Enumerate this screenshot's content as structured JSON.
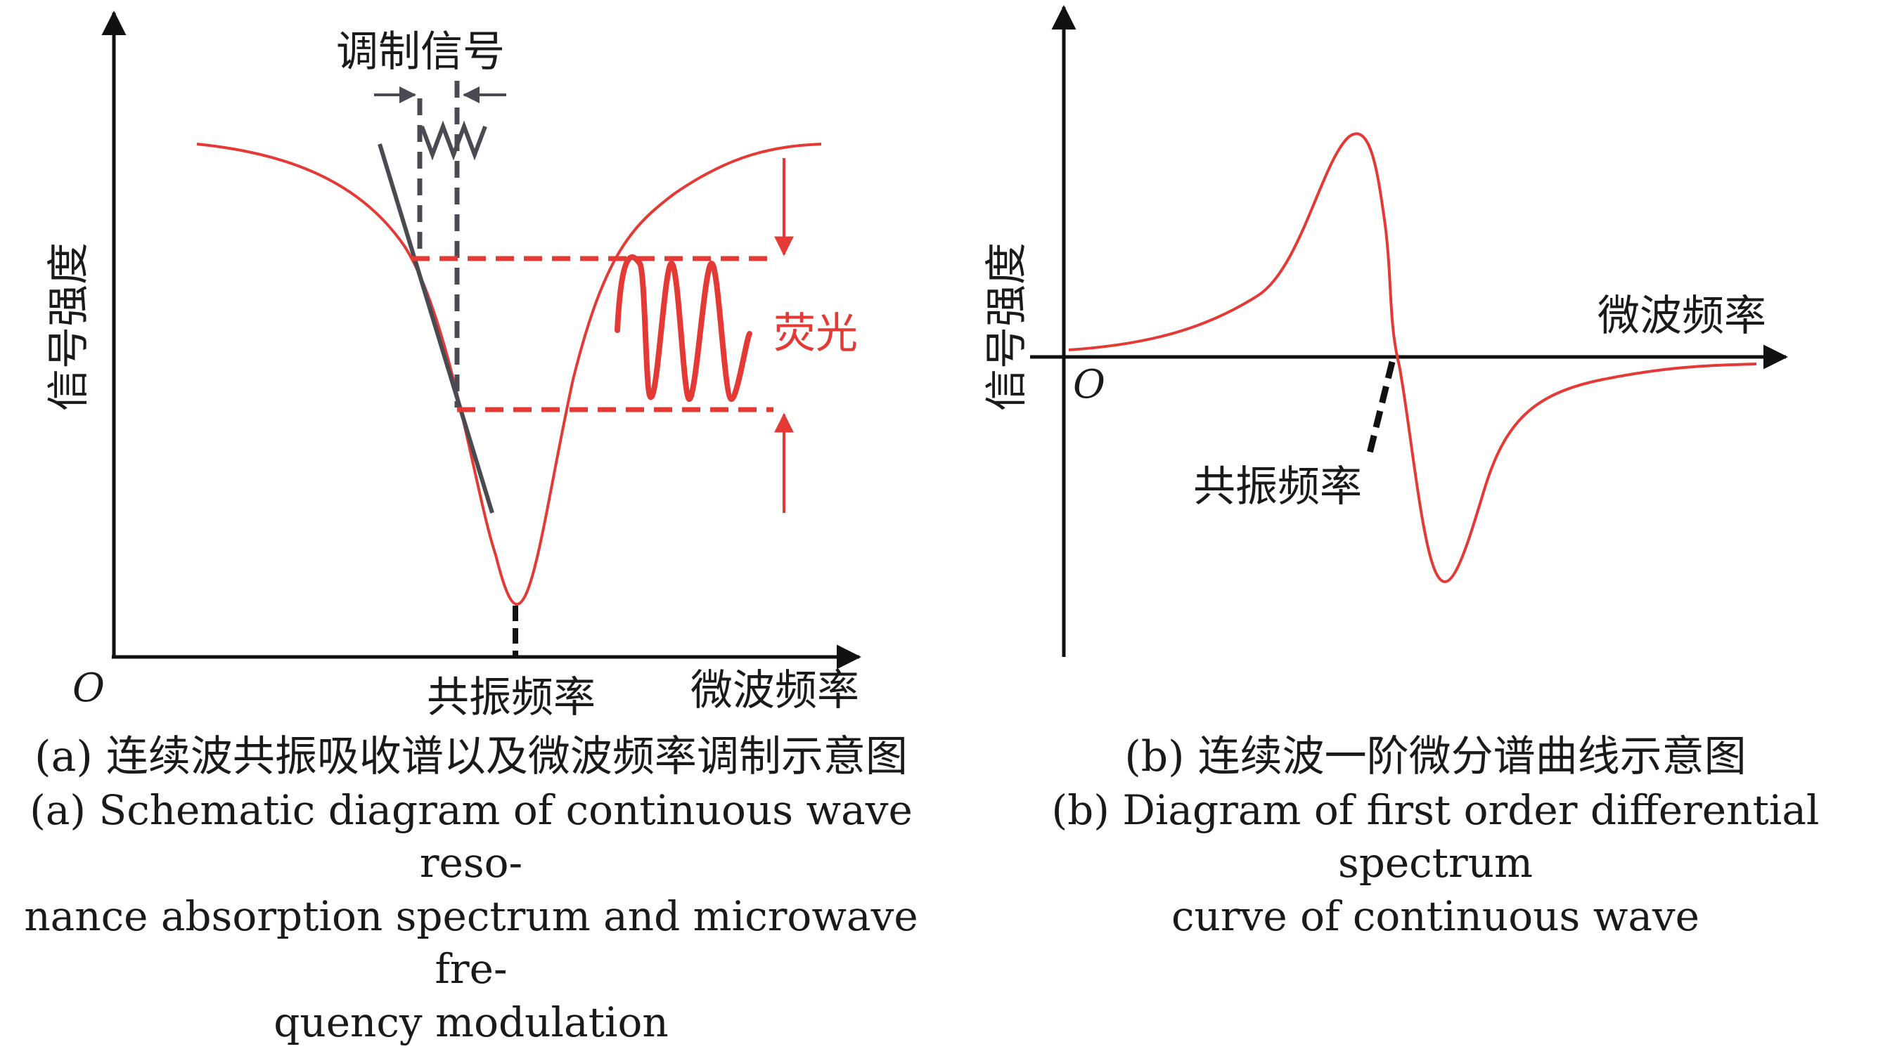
{
  "panel_a": {
    "origin_label": "O",
    "y_axis_label": "信号强度",
    "x_axis_label": "微波频率",
    "modulation_label": "调制信号",
    "fluorescence_label": "荧光",
    "resonance_label": "共振频率",
    "caption_cn": "(a) 连续波共振吸收谱以及微波频率调制示意图",
    "caption_en_lines": [
      "(a) Schematic diagram of continuous wave reso-",
      "nance absorption spectrum and microwave fre-",
      "quency modulation"
    ]
  },
  "panel_b": {
    "origin_label": "O",
    "y_axis_label": "信号强度",
    "x_axis_label": "微波频率",
    "resonance_label": "共振频率",
    "caption_cn": "(b) 连续波一阶微分谱曲线示意图",
    "caption_en_lines": [
      "(b) Diagram of first order differential spectrum",
      "curve of continuous wave"
    ]
  },
  "colors": {
    "curve": "#e53935",
    "axis": "#111111",
    "tangent": "#4a4a52",
    "dashed_dark": "#4a4a52",
    "label": "#1a1a1a"
  }
}
